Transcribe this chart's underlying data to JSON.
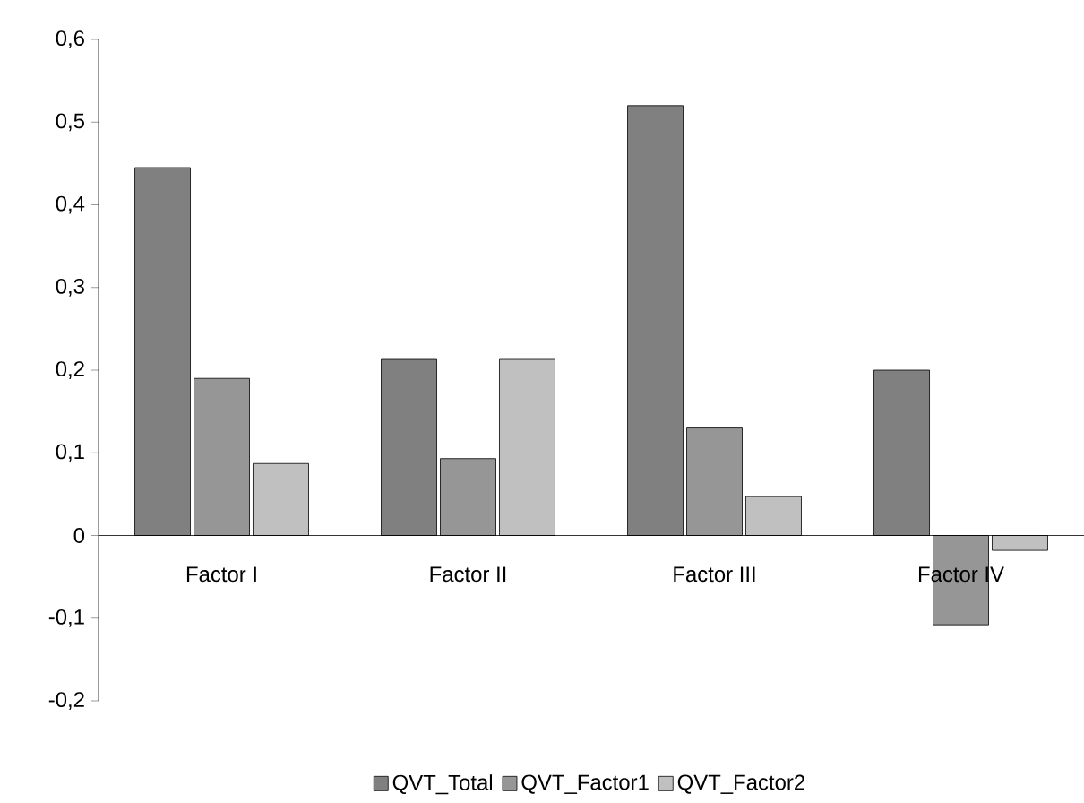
{
  "chart_data": {
    "type": "bar",
    "categories": [
      "Factor I",
      "Factor II",
      "Factor III",
      "Factor IV"
    ],
    "series": [
      {
        "name": "QVT_Total",
        "color": "#808080",
        "values": [
          0.445,
          0.213,
          0.52,
          0.2
        ]
      },
      {
        "name": "QVT_Factor1",
        "color": "#969696",
        "values": [
          0.19,
          0.093,
          0.13,
          -0.108
        ]
      },
      {
        "name": "QVT_Factor2",
        "color": "#c0c0c0",
        "values": [
          0.087,
          0.213,
          0.047,
          -0.018
        ]
      }
    ],
    "ylim": [
      -0.2,
      0.6
    ],
    "yticks": [
      {
        "value": -0.2,
        "label": "-0,2"
      },
      {
        "value": -0.1,
        "label": "-0,1"
      },
      {
        "value": 0,
        "label": "0"
      },
      {
        "value": 0.1,
        "label": "0,1"
      },
      {
        "value": 0.2,
        "label": "0,2"
      },
      {
        "value": 0.3,
        "label": "0,3"
      },
      {
        "value": 0.4,
        "label": "0,4"
      },
      {
        "value": 0.5,
        "label": "0,5"
      },
      {
        "value": 0.6,
        "label": "0,6"
      }
    ],
    "grid": false,
    "legend": "bottom"
  }
}
